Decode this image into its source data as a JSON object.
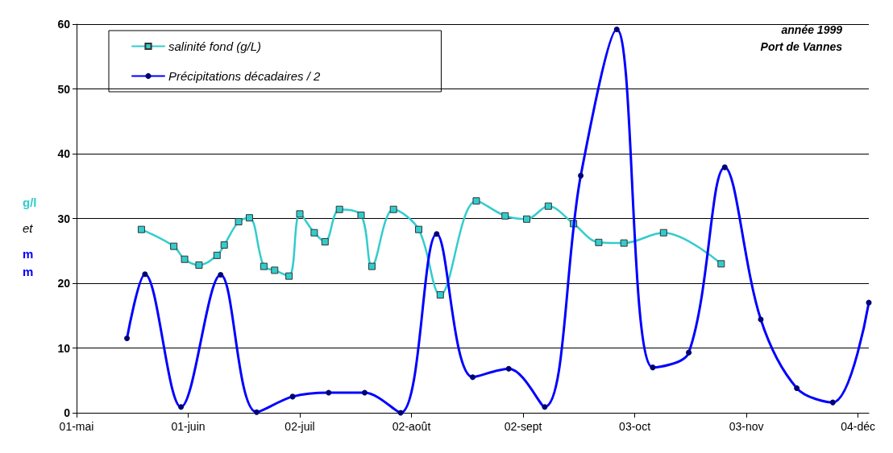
{
  "chart_data": {
    "type": "line",
    "ylabel": "g/l et mm",
    "annotations": [
      "année 1999",
      "Port de Vannes"
    ],
    "xlim": [
      "1999-05-01",
      "1999-12-07"
    ],
    "xticks": [
      {
        "value": "1999-05-01",
        "label": "01-mai"
      },
      {
        "value": "1999-06-01",
        "label": "01-juin"
      },
      {
        "value": "1999-07-02",
        "label": "02-juil"
      },
      {
        "value": "1999-08-02",
        "label": "02-août"
      },
      {
        "value": "1999-09-02",
        "label": "02-sept"
      },
      {
        "value": "1999-10-03",
        "label": "03-oct"
      },
      {
        "value": "1999-11-03",
        "label": "03-nov"
      },
      {
        "value": "1999-12-04",
        "label": "04-déc"
      }
    ],
    "ylim": [
      0,
      60
    ],
    "yticks": [
      0,
      10,
      20,
      30,
      40,
      50,
      60
    ],
    "grid": "y",
    "legend": "top left",
    "line_style": "solid",
    "series": [
      {
        "name": "salinité fond (g/L)",
        "color": "#33cccc",
        "marker": "square",
        "x": [
          "1999-05-19",
          "1999-05-28",
          "1999-05-31",
          "1999-06-04",
          "1999-06-09",
          "1999-06-11",
          "1999-06-15",
          "1999-06-18",
          "1999-06-22",
          "1999-06-25",
          "1999-06-29",
          "1999-07-02",
          "1999-07-06",
          "1999-07-09",
          "1999-07-13",
          "1999-07-19",
          "1999-07-22",
          "1999-07-28",
          "1999-08-04",
          "1999-08-10",
          "1999-08-20",
          "1999-08-28",
          "1999-09-03",
          "1999-09-09",
          "1999-09-16",
          "1999-09-23",
          "1999-09-30",
          "1999-10-11",
          "1999-10-27"
        ],
        "values": [
          28.3,
          25.7,
          23.7,
          22.8,
          24.3,
          25.9,
          29.5,
          30.1,
          22.6,
          22.0,
          21.1,
          30.7,
          27.8,
          26.4,
          31.4,
          30.5,
          22.6,
          31.4,
          28.3,
          18.2,
          32.7,
          30.4,
          29.9,
          31.9,
          29.2,
          26.3,
          26.2,
          27.8,
          23.0
        ]
      },
      {
        "name": "Précipitations décadaires / 2",
        "color": "#0000ff",
        "marker": "circle",
        "x": [
          "1999-05-15",
          "1999-05-20",
          "1999-05-30",
          "1999-06-10",
          "1999-06-20",
          "1999-06-30",
          "1999-07-10",
          "1999-07-20",
          "1999-07-30",
          "1999-08-09",
          "1999-08-19",
          "1999-08-29",
          "1999-09-08",
          "1999-09-18",
          "1999-09-28",
          "1999-10-08",
          "1999-10-18",
          "1999-10-28",
          "1999-11-07",
          "1999-11-17",
          "1999-11-27",
          "1999-12-07"
        ],
        "values": [
          11.5,
          21.4,
          0.9,
          21.3,
          0.1,
          2.5,
          3.1,
          3.1,
          0,
          27.6,
          5.5,
          6.8,
          0.9,
          36.6,
          59.2,
          7.0,
          9.3,
          37.9,
          14.4,
          3.8,
          1.6,
          17.0
        ]
      }
    ]
  }
}
